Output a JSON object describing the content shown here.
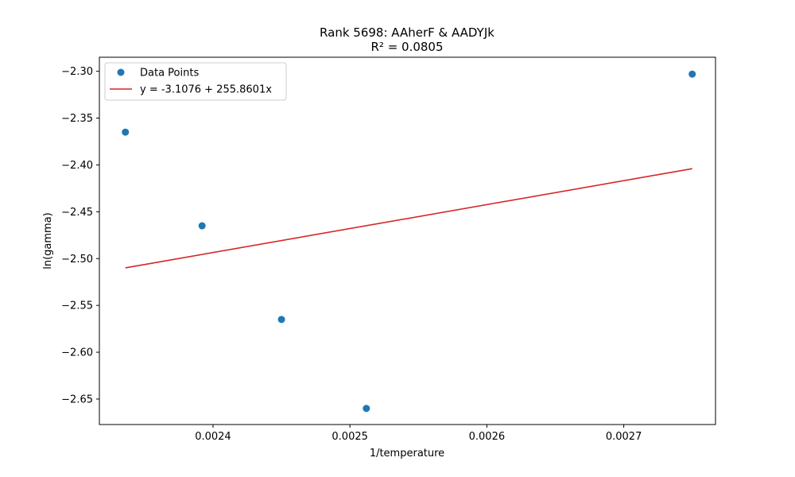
{
  "chart_data": {
    "type": "scatter",
    "title": "Rank 5698: AAherF & AADYJk",
    "subtitle": "R² = 0.0805",
    "xlabel": "1/temperature",
    "ylabel": "ln(gamma)",
    "xlim": [
      0.002317,
      0.002767
    ],
    "ylim": [
      -2.6772,
      -2.285
    ],
    "xticks": [
      0.0024,
      0.0025,
      0.0026,
      0.0027
    ],
    "xtick_labels": [
      "0.0024",
      "0.0025",
      "0.0026",
      "0.0027"
    ],
    "yticks": [
      -2.3,
      -2.35,
      -2.4,
      -2.45,
      -2.5,
      -2.55,
      -2.6,
      -2.65
    ],
    "ytick_labels": [
      "−2.30",
      "−2.35",
      "−2.40",
      "−2.45",
      "−2.50",
      "−2.55",
      "−2.60",
      "−2.65"
    ],
    "grid": false,
    "legend_position": "top-left",
    "series": [
      {
        "name": "Data Points",
        "kind": "scatter",
        "color": "#1f77b4",
        "x": [
          0.002336,
          0.002392,
          0.00245,
          0.002512,
          0.00275
        ],
        "y": [
          -2.365,
          -2.465,
          -2.565,
          -2.66,
          -2.303
        ]
      },
      {
        "name": "y = -3.1076 + 255.8601x",
        "kind": "line",
        "color": "#d62728",
        "intercept": -3.1076,
        "slope": 255.8601,
        "x": [
          0.002336,
          0.00275
        ]
      }
    ]
  }
}
